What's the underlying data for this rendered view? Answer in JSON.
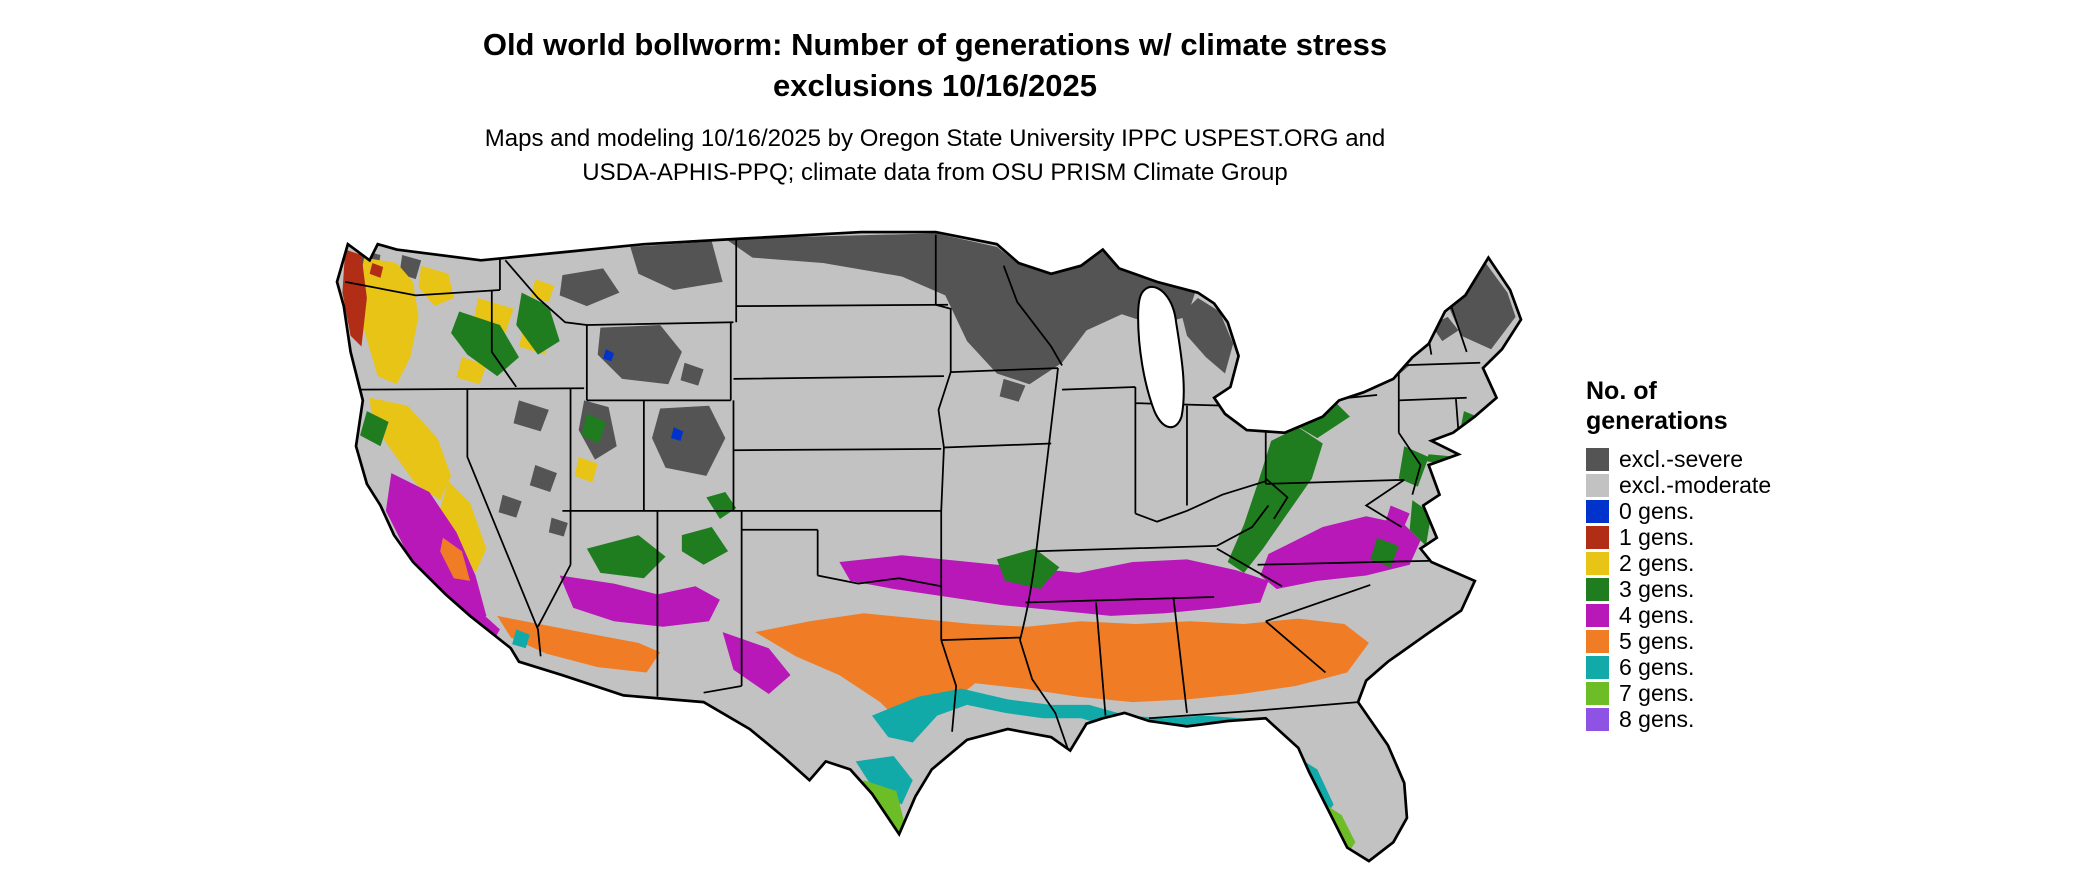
{
  "title": {
    "line1": "Old world bollworm: Number of generations w/ climate stress",
    "line2": "exclusions 10/16/2025"
  },
  "subtitle": {
    "line1": "Maps and modeling 10/16/2025 by Oregon State University IPPC USPEST.ORG and",
    "line2": "USDA-APHIS-PPQ; climate data from OSU PRISM Climate Group"
  },
  "legend": {
    "title_line1": "No. of",
    "title_line2": "generations",
    "items": [
      {
        "key": "excl_severe",
        "label": "excl.-severe",
        "color": "#545454"
      },
      {
        "key": "excl_moderate",
        "label": "excl.-moderate",
        "color": "#c2c2c2"
      },
      {
        "key": "gen0",
        "label": "0 gens.",
        "color": "#0033cc"
      },
      {
        "key": "gen1",
        "label": "1 gens.",
        "color": "#b22d16"
      },
      {
        "key": "gen2",
        "label": "2 gens.",
        "color": "#e8c417"
      },
      {
        "key": "gen3",
        "label": "3 gens.",
        "color": "#1f7d1f"
      },
      {
        "key": "gen4",
        "label": "4 gens.",
        "color": "#b818b8"
      },
      {
        "key": "gen5",
        "label": "5 gens.",
        "color": "#f07d26"
      },
      {
        "key": "gen6",
        "label": "6 gens.",
        "color": "#12a9a9"
      },
      {
        "key": "gen7",
        "label": "7 gens.",
        "color": "#6cbd26"
      },
      {
        "key": "gen8",
        "label": "8 gens.",
        "color": "#8e52e5"
      }
    ]
  },
  "map": {
    "region": "Continental United States",
    "outline_color": "#000000",
    "water_color": "#ffffff"
  }
}
